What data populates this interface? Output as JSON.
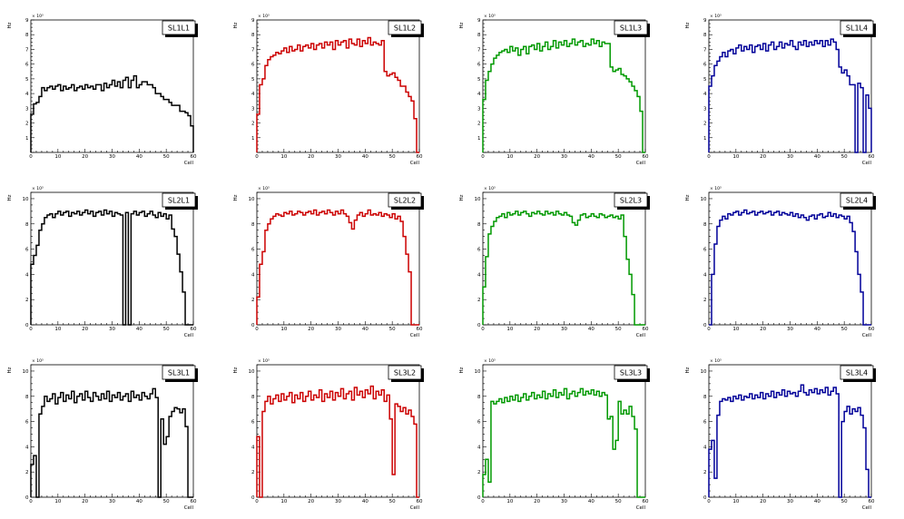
{
  "chart_data": [
    {
      "type": "line",
      "title": "SL1L1",
      "xlabel": "Cell",
      "ylabel": "Hz",
      "exponent": "× 10³",
      "xlim": [
        0,
        60
      ],
      "ylim": [
        0,
        9
      ],
      "xticks": [
        0,
        10,
        20,
        30,
        40,
        50,
        60
      ],
      "yticks": [
        1,
        2,
        3,
        4,
        5,
        6,
        7,
        8,
        9
      ],
      "color": "#000000",
      "values": [
        2.6,
        3.3,
        3.4,
        3.8,
        4.4,
        4.2,
        4.4,
        4.5,
        4.3,
        4.5,
        4.6,
        4.2,
        4.5,
        4.3,
        4.4,
        4.6,
        4.2,
        4.4,
        4.5,
        4.3,
        4.6,
        4.4,
        4.5,
        4.3,
        4.6,
        4.6,
        4.2,
        4.7,
        4.4,
        4.6,
        4.9,
        4.5,
        4.8,
        4.4,
        4.9,
        5.1,
        4.4,
        4.9,
        5.2,
        4.4,
        4.6,
        4.8,
        4.8,
        4.6,
        4.6,
        4.4,
        4.0,
        4.0,
        3.8,
        3.6,
        3.6,
        3.4,
        3.2,
        3.2,
        3.2,
        2.8,
        2.8,
        2.7,
        2.5,
        1.8
      ]
    },
    {
      "type": "line",
      "title": "SL1L2",
      "xlabel": "Cell",
      "ylabel": "Hz",
      "exponent": "× 10³",
      "xlim": [
        0,
        60
      ],
      "ylim": [
        0,
        9
      ],
      "xticks": [
        0,
        10,
        20,
        30,
        40,
        50,
        60
      ],
      "yticks": [
        1,
        2,
        3,
        4,
        5,
        6,
        7,
        8,
        9
      ],
      "color": "#cc0000",
      "values": [
        2.6,
        4.6,
        5.0,
        5.9,
        6.3,
        6.5,
        6.6,
        6.8,
        6.7,
        6.9,
        7.1,
        6.8,
        7.2,
        6.9,
        7.0,
        7.3,
        6.9,
        7.2,
        7.3,
        7.1,
        7.4,
        7.0,
        7.3,
        7.4,
        7.1,
        7.5,
        7.3,
        7.5,
        7.0,
        7.6,
        7.3,
        7.5,
        7.6,
        7.1,
        7.7,
        7.4,
        7.3,
        7.7,
        7.2,
        7.6,
        7.4,
        7.8,
        7.3,
        7.5,
        7.4,
        7.3,
        7.6,
        5.5,
        5.2,
        5.3,
        5.4,
        5.1,
        4.9,
        4.5,
        4.5,
        4.1,
        3.8,
        3.5,
        2.3,
        0.0
      ]
    },
    {
      "type": "line",
      "title": "SL1L3",
      "xlabel": "Cell",
      "ylabel": "Hz",
      "exponent": "× 10³",
      "xlim": [
        0,
        60
      ],
      "ylim": [
        0,
        9
      ],
      "xticks": [
        0,
        10,
        20,
        30,
        40,
        50,
        60
      ],
      "yticks": [
        1,
        2,
        3,
        4,
        5,
        6,
        7,
        8,
        9
      ],
      "color": "#009900",
      "values": [
        3.6,
        4.9,
        5.5,
        6.0,
        6.4,
        6.6,
        6.8,
        6.9,
        7.0,
        6.8,
        7.2,
        6.9,
        7.1,
        6.6,
        7.0,
        7.2,
        6.7,
        7.2,
        7.3,
        7.0,
        7.4,
        6.9,
        7.2,
        7.5,
        7.0,
        7.2,
        7.6,
        7.1,
        7.5,
        7.3,
        7.6,
        7.2,
        7.4,
        7.7,
        7.3,
        7.5,
        7.6,
        7.2,
        7.4,
        7.3,
        7.7,
        7.4,
        7.6,
        7.2,
        7.5,
        7.4,
        7.4,
        5.8,
        5.5,
        5.6,
        5.7,
        5.3,
        5.2,
        5.0,
        4.8,
        4.5,
        4.2,
        3.8,
        2.8,
        0.0
      ]
    },
    {
      "type": "line",
      "title": "SL1L4",
      "xlabel": "Cell",
      "ylabel": "Hz",
      "exponent": "× 10³",
      "xlim": [
        0,
        60
      ],
      "ylim": [
        0,
        9
      ],
      "xticks": [
        0,
        10,
        20,
        30,
        40,
        50,
        60
      ],
      "yticks": [
        1,
        2,
        3,
        4,
        5,
        6,
        7,
        8,
        9
      ],
      "color": "#000099",
      "values": [
        4.5,
        5.2,
        5.9,
        6.2,
        6.5,
        6.8,
        6.5,
        6.9,
        7.0,
        6.7,
        7.1,
        7.3,
        6.9,
        7.2,
        7.0,
        7.3,
        6.8,
        7.2,
        7.3,
        7.0,
        7.4,
        6.9,
        7.3,
        7.5,
        7.0,
        7.2,
        7.5,
        7.1,
        7.4,
        7.3,
        7.6,
        7.2,
        7.0,
        7.5,
        7.3,
        7.6,
        7.2,
        7.5,
        7.3,
        7.6,
        7.4,
        7.6,
        7.2,
        7.6,
        7.3,
        7.7,
        7.5,
        7.0,
        5.8,
        5.4,
        5.6,
        5.2,
        4.6,
        4.6,
        0.0,
        4.7,
        4.4,
        0.0,
        3.9,
        3.0
      ]
    },
    {
      "type": "line",
      "title": "SL2L1",
      "xlabel": "Cell",
      "ylabel": "Hz",
      "exponent": "× 10³",
      "xlim": [
        0,
        60
      ],
      "ylim": [
        0,
        10.5
      ],
      "xticks": [
        0,
        10,
        20,
        30,
        40,
        50,
        60
      ],
      "yticks": [
        0,
        2,
        4,
        6,
        8,
        10
      ],
      "color": "#000000",
      "values": [
        4.8,
        5.5,
        6.3,
        7.5,
        8.0,
        8.5,
        8.7,
        8.8,
        8.5,
        8.8,
        9.0,
        8.7,
        8.9,
        9.0,
        8.6,
        8.9,
        8.8,
        9.0,
        8.7,
        8.9,
        9.1,
        8.8,
        9.0,
        8.6,
        8.9,
        9.0,
        8.7,
        9.1,
        8.8,
        9.0,
        8.6,
        8.9,
        8.8,
        8.7,
        0.0,
        8.9,
        0.0,
        8.8,
        9.0,
        8.7,
        8.9,
        9.0,
        8.6,
        8.8,
        9.0,
        8.7,
        8.5,
        8.9,
        8.6,
        8.8,
        8.4,
        8.7,
        7.6,
        7.0,
        5.6,
        4.2,
        2.6,
        0.0,
        0.0,
        0.0
      ]
    },
    {
      "type": "line",
      "title": "SL2L2",
      "xlabel": "Cell",
      "ylabel": "Hz",
      "exponent": "× 10³",
      "xlim": [
        0,
        60
      ],
      "ylim": [
        0,
        10.5
      ],
      "xticks": [
        0,
        10,
        20,
        30,
        40,
        50,
        60
      ],
      "yticks": [
        0,
        2,
        4,
        6,
        8,
        10
      ],
      "color": "#cc0000",
      "values": [
        2.2,
        4.8,
        5.8,
        7.5,
        8.0,
        8.4,
        8.6,
        8.8,
        8.7,
        8.6,
        8.9,
        8.8,
        9.0,
        8.7,
        8.8,
        9.0,
        8.9,
        8.7,
        8.9,
        9.0,
        8.8,
        9.1,
        8.7,
        8.9,
        9.0,
        8.8,
        9.1,
        8.9,
        8.7,
        9.0,
        8.8,
        9.1,
        8.8,
        8.6,
        8.1,
        7.6,
        8.3,
        8.7,
        8.9,
        8.6,
        8.8,
        9.1,
        8.7,
        8.8,
        8.7,
        8.9,
        8.6,
        8.8,
        8.7,
        8.5,
        8.8,
        8.4,
        8.6,
        8.2,
        7.0,
        5.6,
        4.2,
        0.0,
        0.0,
        0.0
      ]
    },
    {
      "type": "line",
      "title": "SL2L3",
      "xlabel": "Cell",
      "ylabel": "Hz",
      "exponent": "× 10³",
      "xlim": [
        0,
        60
      ],
      "ylim": [
        0,
        10.5
      ],
      "xticks": [
        0,
        10,
        20,
        30,
        40,
        50,
        60
      ],
      "yticks": [
        0,
        2,
        4,
        6,
        8,
        10
      ],
      "color": "#009900",
      "values": [
        3.0,
        5.4,
        7.2,
        7.8,
        8.2,
        8.5,
        8.6,
        8.8,
        8.5,
        8.9,
        8.7,
        8.8,
        9.0,
        8.7,
        8.9,
        9.0,
        8.8,
        8.6,
        8.9,
        8.8,
        9.0,
        8.8,
        8.7,
        9.0,
        8.8,
        8.9,
        8.7,
        9.0,
        8.8,
        8.7,
        8.9,
        8.7,
        8.6,
        8.1,
        7.9,
        8.3,
        8.7,
        8.8,
        8.5,
        8.6,
        8.8,
        8.6,
        8.5,
        8.8,
        8.7,
        8.5,
        8.6,
        8.7,
        8.5,
        8.6,
        8.4,
        8.7,
        7.0,
        5.2,
        4.0,
        2.4,
        0.0,
        0.0,
        0.0,
        0.0
      ]
    },
    {
      "type": "line",
      "title": "SL2L4",
      "xlabel": "Cell",
      "ylabel": "Hz",
      "exponent": "× 10³",
      "xlim": [
        0,
        60
      ],
      "ylim": [
        0,
        10.5
      ],
      "xticks": [
        0,
        10,
        20,
        30,
        40,
        50,
        60
      ],
      "yticks": [
        0,
        2,
        4,
        6,
        8,
        10
      ],
      "color": "#000099",
      "values": [
        0.0,
        4.0,
        6.4,
        7.8,
        8.3,
        8.6,
        8.4,
        8.8,
        8.7,
        8.9,
        9.0,
        8.7,
        8.9,
        9.1,
        8.8,
        8.9,
        9.0,
        8.7,
        8.9,
        9.0,
        8.8,
        8.9,
        9.0,
        8.7,
        8.9,
        9.0,
        8.7,
        8.9,
        8.8,
        8.7,
        8.9,
        8.6,
        8.8,
        8.5,
        8.7,
        8.5,
        8.3,
        8.6,
        8.7,
        8.4,
        8.7,
        8.8,
        8.5,
        8.6,
        8.9,
        8.6,
        8.8,
        8.5,
        8.7,
        8.6,
        8.4,
        8.6,
        8.1,
        7.4,
        5.8,
        4.0,
        2.6,
        0.0,
        0.0,
        0.0
      ]
    },
    {
      "type": "line",
      "title": "SL3L1",
      "xlabel": "Cell",
      "ylabel": "Hz",
      "exponent": "× 10³",
      "xlim": [
        0,
        60
      ],
      "ylim": [
        0,
        10.5
      ],
      "xticks": [
        0,
        10,
        20,
        30,
        40,
        50,
        60
      ],
      "yticks": [
        0,
        2,
        4,
        6,
        8,
        10
      ],
      "color": "#000000",
      "values": [
        2.6,
        3.3,
        0.0,
        6.6,
        7.2,
        8.0,
        7.6,
        7.8,
        8.2,
        7.4,
        7.9,
        8.3,
        7.6,
        8.1,
        7.8,
        8.4,
        7.5,
        8.0,
        8.2,
        7.7,
        8.4,
        7.9,
        7.6,
        8.3,
        8.0,
        7.7,
        8.2,
        7.8,
        8.4,
        7.6,
        8.1,
        7.9,
        8.3,
        7.7,
        8.0,
        8.2,
        7.6,
        8.4,
        7.9,
        8.1,
        7.7,
        8.3,
        8.0,
        7.8,
        8.2,
        8.6,
        7.9,
        0.0,
        6.2,
        4.2,
        4.8,
        6.4,
        6.8,
        7.1,
        7.0,
        6.7,
        7.0,
        5.6,
        0.0,
        0.0
      ]
    },
    {
      "type": "line",
      "title": "SL3L2",
      "xlabel": "Cell",
      "ylabel": "Hz",
      "exponent": "× 10³",
      "xlim": [
        0,
        60
      ],
      "ylim": [
        0,
        10.5
      ],
      "xticks": [
        0,
        10,
        20,
        30,
        40,
        50,
        60
      ],
      "yticks": [
        0,
        2,
        4,
        6,
        8,
        10
      ],
      "color": "#cc0000",
      "values": [
        4.8,
        0.0,
        6.8,
        7.6,
        8.0,
        7.4,
        7.8,
        8.1,
        7.6,
        8.2,
        7.7,
        8.0,
        8.3,
        7.5,
        8.1,
        7.8,
        8.3,
        7.6,
        8.0,
        8.4,
        7.7,
        8.1,
        7.9,
        8.5,
        7.6,
        8.2,
        7.9,
        8.4,
        7.7,
        8.3,
        8.0,
        8.6,
        7.8,
        8.2,
        8.4,
        7.7,
        8.7,
        8.1,
        8.4,
        7.9,
        8.5,
        8.2,
        8.8,
        7.8,
        8.4,
        8.1,
        8.5,
        7.6,
        8.1,
        6.2,
        1.8,
        7.4,
        7.2,
        6.8,
        7.1,
        6.6,
        6.9,
        6.4,
        5.8,
        0.0
      ]
    },
    {
      "type": "line",
      "title": "SL3L3",
      "xlabel": "Cell",
      "ylabel": "Hz",
      "exponent": "× 10³",
      "xlim": [
        0,
        60
      ],
      "ylim": [
        0,
        10.5
      ],
      "xticks": [
        0,
        10,
        20,
        30,
        40,
        50,
        60
      ],
      "yticks": [
        0,
        2,
        4,
        6,
        8,
        10
      ],
      "color": "#009900",
      "values": [
        1.8,
        3.0,
        1.2,
        7.6,
        7.4,
        7.6,
        7.8,
        7.5,
        7.9,
        7.6,
        8.0,
        7.7,
        8.1,
        7.6,
        7.9,
        8.2,
        7.7,
        8.0,
        8.3,
        7.8,
        8.1,
        7.9,
        8.4,
        7.8,
        8.2,
        8.0,
        8.5,
        7.9,
        8.3,
        8.1,
        8.6,
        7.8,
        8.2,
        8.4,
        8.0,
        8.3,
        8.6,
        8.1,
        8.4,
        8.2,
        8.5,
        8.1,
        8.4,
        8.0,
        8.3,
        8.1,
        6.2,
        6.4,
        3.8,
        4.5,
        7.6,
        6.6,
        6.9,
        6.6,
        7.2,
        6.4,
        5.4,
        0.0,
        0.0,
        0.0
      ]
    },
    {
      "type": "line",
      "title": "SL3L4",
      "xlabel": "Cell",
      "ylabel": "Hz",
      "exponent": "× 10³",
      "xlim": [
        0,
        60
      ],
      "ylim": [
        0,
        10.5
      ],
      "xticks": [
        0,
        10,
        20,
        30,
        40,
        50,
        60
      ],
      "yticks": [
        0,
        2,
        4,
        6,
        8,
        10
      ],
      "color": "#000099",
      "values": [
        3.8,
        4.5,
        1.5,
        6.5,
        7.6,
        7.8,
        7.7,
        7.9,
        7.6,
        8.0,
        7.8,
        8.1,
        7.7,
        8.0,
        7.9,
        8.2,
        7.8,
        8.1,
        7.9,
        8.3,
        7.8,
        8.2,
        8.0,
        8.4,
        7.9,
        8.3,
        8.1,
        8.5,
        8.0,
        8.4,
        8.2,
        8.3,
        8.0,
        8.4,
        8.9,
        8.3,
        8.1,
        8.5,
        8.3,
        8.6,
        8.2,
        8.5,
        8.3,
        8.7,
        8.1,
        8.4,
        8.7,
        8.2,
        0.0,
        6.0,
        6.8,
        7.2,
        6.6,
        7.0,
        6.8,
        7.1,
        6.5,
        5.5,
        2.2,
        0.0
      ]
    }
  ]
}
